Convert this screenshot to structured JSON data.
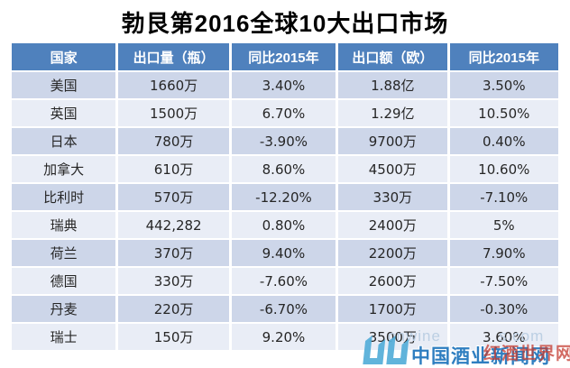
{
  "title": "勃艮第2016全球10大出口市场",
  "chart_data": {
    "type": "table",
    "title": "勃艮第2016全球10大出口市场",
    "columns": [
      "国家",
      "出口量（瓶）",
      "同比2015年",
      "出口额（欧）",
      "同比2015年"
    ],
    "rows": [
      [
        "美国",
        "1660万",
        "3.40%",
        "1.88亿",
        "3.50%"
      ],
      [
        "英国",
        "1500万",
        "6.70%",
        "1.29亿",
        "10.50%"
      ],
      [
        "日本",
        "780万",
        "-3.90%",
        "9700万",
        "0.40%"
      ],
      [
        "加拿大",
        "610万",
        "8.60%",
        "4500万",
        "10.60%"
      ],
      [
        "比利时",
        "570万",
        "-12.20%",
        "330万",
        "-7.10%"
      ],
      [
        "瑞典",
        "442,282",
        "0.80%",
        "2400万",
        "5%"
      ],
      [
        "荷兰",
        "370万",
        "9.40%",
        "2200万",
        "7.90%"
      ],
      [
        "德国",
        "330万",
        "-7.60%",
        "2600万",
        "-7.50%"
      ],
      [
        "丹麦",
        "220万",
        "-6.70%",
        "1700万",
        "-0.30%"
      ],
      [
        "瑞士",
        "150万",
        "9.20%",
        "3500万",
        "3.60%"
      ]
    ]
  },
  "watermark": {
    "url_left": "cnwine",
    "url_right": "s.com",
    "site_name": "中国酒业新闻网",
    "red_overlay": "红酒世界网",
    "logo_icon": "cnwinenews-logo"
  },
  "colors": {
    "header_bg": "#4F81BD",
    "row_dark": "#CDD6E9",
    "row_light": "#E9EDF6",
    "header_text": "#FFFFFF",
    "body_text": "#262626",
    "watermark_blue": "#2E7EC0",
    "watermark_light": "#BCCFE3",
    "watermark_red": "#C43A2F",
    "logo_blue": "#54AED9"
  }
}
